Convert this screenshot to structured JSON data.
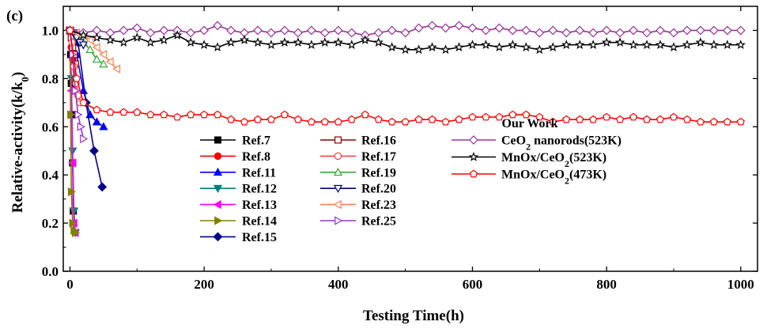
{
  "chart_data": {
    "type": "line",
    "panel_label": "(c)",
    "xlabel": "Testing Time(h)",
    "ylabel": "Relative-activity(k/k0)",
    "ylabel_parts": [
      "Relative-activity(k/k",
      "0",
      ")"
    ],
    "xlim": [
      -10,
      1025
    ],
    "ylim": [
      0,
      1.1
    ],
    "xticks": [
      0,
      200,
      400,
      600,
      800,
      1000
    ],
    "xtick_labels": [
      "0",
      "200",
      "400",
      "600",
      "800",
      "1000"
    ],
    "yticks": [
      0,
      0.2,
      0.4,
      0.6,
      0.8,
      1.0
    ],
    "ytick_labels": [
      "0.0",
      "0.2",
      "0.4",
      "0.6",
      "0.8",
      "1.0"
    ],
    "legend_heading": "Our Work",
    "series": [
      {
        "name": "Ref.7",
        "label_parts": [
          "Ref.7"
        ],
        "color": "#000000",
        "marker": "square",
        "filled": true,
        "x": [
          0,
          1,
          2,
          3,
          4,
          5
        ],
        "y": [
          1.0,
          0.9,
          0.78,
          0.65,
          0.45,
          0.25
        ]
      },
      {
        "name": "Ref.8",
        "label_parts": [
          "Ref.8"
        ],
        "color": "#ff0000",
        "marker": "circle",
        "filled": true,
        "x": [
          0,
          2,
          4,
          6
        ],
        "y": [
          1.0,
          0.93,
          0.88,
          0.8
        ]
      },
      {
        "name": "Ref.11",
        "label_parts": [
          "Ref.11"
        ],
        "color": "#0000ff",
        "marker": "triangle-up",
        "filled": true,
        "x": [
          0,
          10,
          20,
          30,
          40,
          50
        ],
        "y": [
          1.0,
          0.9,
          0.75,
          0.65,
          0.62,
          0.6
        ]
      },
      {
        "name": "Ref.12",
        "label_parts": [
          "Ref.12"
        ],
        "color": "#008080",
        "marker": "triangle-down",
        "filled": true,
        "x": [
          0,
          2,
          4,
          6,
          8
        ],
        "y": [
          1.0,
          0.8,
          0.5,
          0.25,
          0.16
        ]
      },
      {
        "name": "Ref.13",
        "label_parts": [
          "Ref.13"
        ],
        "color": "#ff00ff",
        "marker": "triangle-left",
        "filled": true,
        "x": [
          0,
          2,
          4,
          6,
          8
        ],
        "y": [
          1.0,
          0.75,
          0.45,
          0.2,
          0.16
        ]
      },
      {
        "name": "Ref.14",
        "label_parts": [
          "Ref.14"
        ],
        "color": "#808000",
        "marker": "triangle-right",
        "filled": true,
        "x": [
          0,
          1,
          2,
          4,
          6,
          8
        ],
        "y": [
          1.0,
          0.65,
          0.33,
          0.2,
          0.17,
          0.16
        ]
      },
      {
        "name": "Ref.15",
        "label_parts": [
          "Ref.15"
        ],
        "color": "#00008b",
        "marker": "diamond",
        "filled": true,
        "x": [
          0,
          12,
          24,
          36,
          48
        ],
        "y": [
          1.0,
          0.95,
          0.7,
          0.5,
          0.35
        ]
      },
      {
        "name": "Ref.16",
        "label_parts": [
          "Ref.16"
        ],
        "color": "#8b0000",
        "marker": "square",
        "filled": false,
        "x": [
          0,
          2,
          4,
          6,
          8
        ],
        "y": [
          1.0,
          0.97,
          0.93,
          0.9,
          0.86
        ]
      },
      {
        "name": "Ref.17",
        "label_parts": [
          "Ref.17"
        ],
        "color": "#ff4040",
        "marker": "circle",
        "filled": false,
        "x": [
          0,
          3,
          6,
          9,
          12,
          15
        ],
        "y": [
          1.0,
          0.95,
          0.85,
          0.78,
          0.73,
          0.7
        ]
      },
      {
        "name": "Ref.19",
        "label_parts": [
          "Ref.19"
        ],
        "color": "#33aa33",
        "marker": "triangle-up",
        "filled": false,
        "x": [
          0,
          10,
          20,
          30,
          40,
          50
        ],
        "y": [
          1.0,
          0.98,
          0.95,
          0.92,
          0.88,
          0.86
        ]
      },
      {
        "name": "Ref.20",
        "label_parts": [
          "Ref.20"
        ],
        "color": "#000080",
        "marker": "triangle-down",
        "filled": false,
        "x": [
          0,
          5,
          10,
          15,
          20
        ],
        "y": [
          1.0,
          0.99,
          0.97,
          0.95,
          0.94
        ]
      },
      {
        "name": "Ref.23",
        "label_parts": [
          "Ref.23"
        ],
        "color": "#ff7f50",
        "marker": "triangle-left",
        "filled": false,
        "x": [
          0,
          10,
          20,
          30,
          40,
          50,
          60,
          70
        ],
        "y": [
          1.0,
          0.99,
          0.98,
          0.96,
          0.93,
          0.9,
          0.87,
          0.84
        ]
      },
      {
        "name": "Ref.25",
        "label_parts": [
          "Ref.25"
        ],
        "color": "#9932cc",
        "marker": "triangle-right",
        "filled": false,
        "x": [
          0,
          4,
          8,
          12,
          16,
          20
        ],
        "y": [
          1.0,
          0.9,
          0.75,
          0.65,
          0.6,
          0.55
        ]
      },
      {
        "name": "CeO2 nanorods(523K)",
        "label_parts": [
          "CeO",
          "2",
          " nanorods(523K)"
        ],
        "color": "#993399",
        "marker": "diamond",
        "filled": false,
        "x": [
          0,
          20,
          40,
          60,
          80,
          100,
          120,
          140,
          160,
          180,
          200,
          220,
          240,
          260,
          280,
          300,
          320,
          340,
          360,
          380,
          400,
          420,
          440,
          460,
          480,
          500,
          520,
          540,
          560,
          580,
          600,
          620,
          640,
          660,
          680,
          700,
          720,
          740,
          760,
          780,
          800,
          820,
          840,
          860,
          880,
          900,
          920,
          940,
          960,
          980,
          1000
        ],
        "y": [
          1.0,
          0.99,
          1.0,
          0.99,
          1.0,
          1.01,
          0.99,
          1.0,
          1.0,
          0.99,
          1.0,
          1.02,
          1.0,
          0.99,
          1.0,
          0.99,
          1.0,
          0.99,
          1.0,
          0.99,
          1.0,
          0.99,
          0.98,
          0.99,
          1.0,
          0.99,
          1.01,
          1.02,
          1.01,
          1.02,
          1.01,
          1.0,
          1.01,
          1.0,
          1.0,
          0.99,
          1.0,
          0.99,
          1.0,
          0.99,
          1.0,
          0.99,
          1.0,
          0.99,
          1.0,
          0.99,
          1.0,
          1.0,
          1.0,
          1.0,
          1.0
        ]
      },
      {
        "name": "MnOx/CeO2(523K)",
        "label_parts": [
          "MnOx/CeO",
          "2",
          "(523K)"
        ],
        "color": "#000000",
        "marker": "star",
        "filled": false,
        "x": [
          0,
          20,
          40,
          60,
          80,
          100,
          120,
          140,
          160,
          180,
          200,
          220,
          240,
          260,
          280,
          300,
          320,
          340,
          360,
          380,
          400,
          420,
          440,
          460,
          480,
          500,
          520,
          540,
          560,
          580,
          600,
          620,
          640,
          660,
          680,
          700,
          720,
          740,
          760,
          780,
          800,
          820,
          840,
          860,
          880,
          900,
          920,
          940,
          960,
          980,
          1000
        ],
        "y": [
          1.0,
          0.98,
          0.97,
          0.96,
          0.95,
          0.97,
          0.95,
          0.96,
          0.98,
          0.95,
          0.94,
          0.93,
          0.95,
          0.96,
          0.95,
          0.94,
          0.95,
          0.95,
          0.94,
          0.95,
          0.95,
          0.94,
          0.96,
          0.95,
          0.93,
          0.92,
          0.92,
          0.93,
          0.92,
          0.93,
          0.94,
          0.94,
          0.93,
          0.94,
          0.93,
          0.92,
          0.93,
          0.94,
          0.94,
          0.94,
          0.95,
          0.95,
          0.94,
          0.94,
          0.94,
          0.93,
          0.94,
          0.95,
          0.94,
          0.94,
          0.94
        ]
      },
      {
        "name": "MnOx/CeO2(473K)",
        "label_parts": [
          "MnOx/CeO",
          "2",
          "(473K)"
        ],
        "color": "#ff0000",
        "marker": "pentagon",
        "filled": false,
        "x": [
          0,
          10,
          20,
          40,
          60,
          80,
          100,
          120,
          140,
          160,
          180,
          200,
          220,
          240,
          260,
          280,
          300,
          320,
          340,
          360,
          380,
          400,
          420,
          440,
          460,
          480,
          500,
          520,
          540,
          560,
          580,
          600,
          620,
          640,
          660,
          680,
          700,
          720,
          740,
          760,
          780,
          800,
          820,
          840,
          860,
          880,
          900,
          920,
          940,
          960,
          980,
          1000
        ],
        "y": [
          1.0,
          0.8,
          0.7,
          0.67,
          0.66,
          0.66,
          0.66,
          0.65,
          0.65,
          0.64,
          0.65,
          0.65,
          0.65,
          0.63,
          0.62,
          0.63,
          0.63,
          0.65,
          0.63,
          0.62,
          0.62,
          0.62,
          0.63,
          0.65,
          0.63,
          0.62,
          0.62,
          0.63,
          0.63,
          0.62,
          0.63,
          0.64,
          0.64,
          0.64,
          0.65,
          0.65,
          0.64,
          0.62,
          0.63,
          0.63,
          0.63,
          0.64,
          0.63,
          0.64,
          0.63,
          0.63,
          0.64,
          0.63,
          0.62,
          0.62,
          0.62,
          0.62
        ]
      }
    ]
  }
}
